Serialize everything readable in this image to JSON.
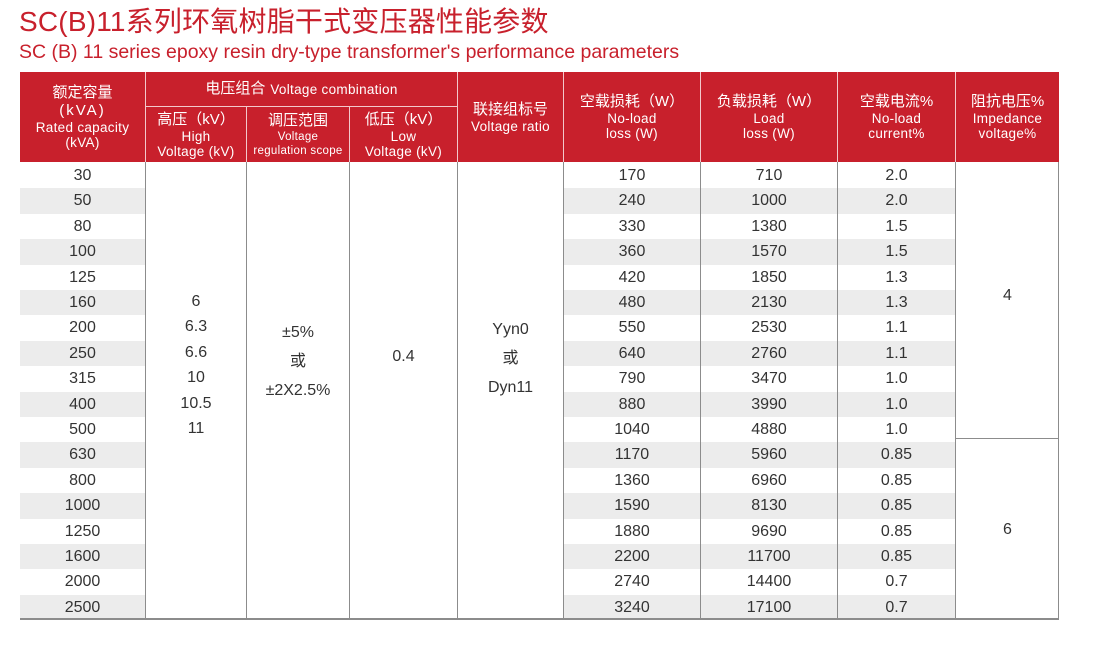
{
  "title": {
    "cn": "SC(B)11系列环氧树脂干式变压器性能参数",
    "en": "SC (B) 11 series epoxy resin dry-type transformer's performance parameters"
  },
  "colors": {
    "header_bg": "#c8202c",
    "title": "#c8202c",
    "alt_row": "#ececec",
    "text": "#333333"
  },
  "header": {
    "rated_capacity": {
      "cn": "额定容量",
      "unit": "(kVA)",
      "en1": "Rated capacity",
      "en2": "(kVA)"
    },
    "voltage_combination": {
      "cn": "电压组合",
      "en": "Voltage combination"
    },
    "high_voltage": {
      "cn": "高压（kV）",
      "en1": "High",
      "en2": "Voltage (kV)"
    },
    "regulation": {
      "cn": "调压范围",
      "en1": "Voltage",
      "en2": "regulation scope"
    },
    "low_voltage": {
      "cn": "低压（kV）",
      "en1": "Low",
      "en2": "Voltage (kV)"
    },
    "vector_group": {
      "cn": "联接组标号",
      "en": "Voltage ratio"
    },
    "no_load_loss": {
      "cn": "空载损耗（W）",
      "en1": "No-load",
      "en2": "loss (W)"
    },
    "load_loss": {
      "cn": "负载损耗（W）",
      "en1": "Load",
      "en2": "loss (W)"
    },
    "no_load_current": {
      "cn": "空载电流%",
      "en1": "No-load",
      "en2": "current%"
    },
    "impedance": {
      "cn": "阻抗电压%",
      "en1": "Impedance",
      "en2": "voltage%"
    }
  },
  "merged": {
    "high_voltage_values": [
      "6",
      "6.3",
      "6.6",
      "10",
      "10.5",
      "11"
    ],
    "regulation_values": [
      "±5%",
      "或",
      "±2X2.5%"
    ],
    "low_voltage_value": "0.4",
    "vector_group_values": [
      "Yyn0",
      "或",
      "Dyn11"
    ],
    "impedance_group1": "4",
    "impedance_group2": "6"
  },
  "rows": [
    {
      "capacity": "30",
      "no_load_loss": "170",
      "load_loss": "710",
      "no_load_current": "2.0"
    },
    {
      "capacity": "50",
      "no_load_loss": "240",
      "load_loss": "1000",
      "no_load_current": "2.0"
    },
    {
      "capacity": "80",
      "no_load_loss": "330",
      "load_loss": "1380",
      "no_load_current": "1.5"
    },
    {
      "capacity": "100",
      "no_load_loss": "360",
      "load_loss": "1570",
      "no_load_current": "1.5"
    },
    {
      "capacity": "125",
      "no_load_loss": "420",
      "load_loss": "1850",
      "no_load_current": "1.3"
    },
    {
      "capacity": "160",
      "no_load_loss": "480",
      "load_loss": "2130",
      "no_load_current": "1.3"
    },
    {
      "capacity": "200",
      "no_load_loss": "550",
      "load_loss": "2530",
      "no_load_current": "1.1"
    },
    {
      "capacity": "250",
      "no_load_loss": "640",
      "load_loss": "2760",
      "no_load_current": "1.1"
    },
    {
      "capacity": "315",
      "no_load_loss": "790",
      "load_loss": "3470",
      "no_load_current": "1.0"
    },
    {
      "capacity": "400",
      "no_load_loss": "880",
      "load_loss": "3990",
      "no_load_current": "1.0"
    },
    {
      "capacity": "500",
      "no_load_loss": "1040",
      "load_loss": "4880",
      "no_load_current": "1.0"
    },
    {
      "capacity": "630",
      "no_load_loss": "1170",
      "load_loss": "5960",
      "no_load_current": "0.85"
    },
    {
      "capacity": "800",
      "no_load_loss": "1360",
      "load_loss": "6960",
      "no_load_current": "0.85"
    },
    {
      "capacity": "1000",
      "no_load_loss": "1590",
      "load_loss": "8130",
      "no_load_current": "0.85"
    },
    {
      "capacity": "1250",
      "no_load_loss": "1880",
      "load_loss": "9690",
      "no_load_current": "0.85"
    },
    {
      "capacity": "1600",
      "no_load_loss": "2200",
      "load_loss": "11700",
      "no_load_current": "0.85"
    },
    {
      "capacity": "2000",
      "no_load_loss": "2740",
      "load_loss": "14400",
      "no_load_current": "0.7"
    },
    {
      "capacity": "2500",
      "no_load_loss": "3240",
      "load_loss": "17100",
      "no_load_current": "0.7"
    }
  ]
}
